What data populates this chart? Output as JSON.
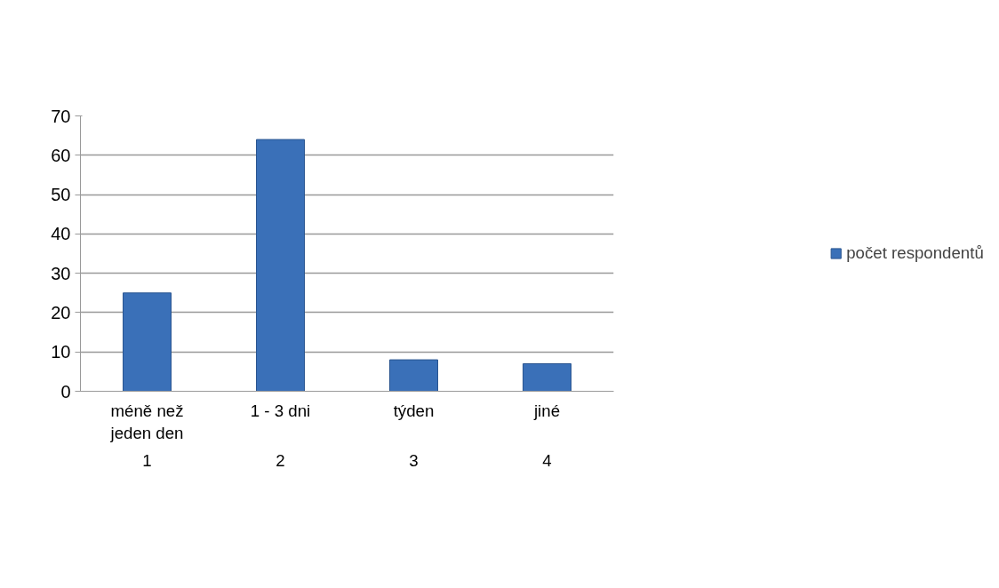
{
  "chart_data": {
    "type": "bar",
    "categories": [
      "méně než jeden den",
      "1 - 3 dni",
      "týden",
      "jiné"
    ],
    "series": [
      {
        "name": "počet respondentů",
        "color": "#3a70b8",
        "values": [
          25,
          64,
          8,
          7
        ]
      }
    ],
    "annotations": [
      "1",
      "2",
      "3",
      "4"
    ],
    "ylim": [
      0,
      70
    ],
    "yticks": [
      0,
      10,
      20,
      30,
      40,
      50,
      60,
      70
    ],
    "grid": "y",
    "legend": "right"
  }
}
